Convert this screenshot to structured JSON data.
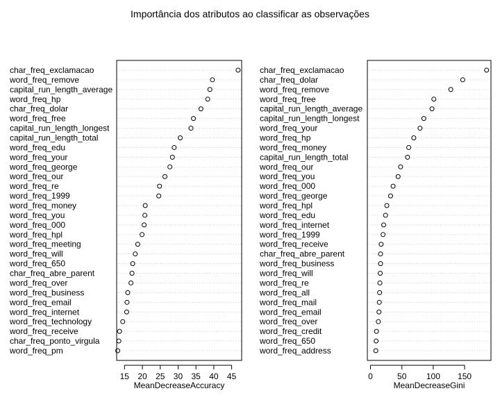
{
  "title": "Importância dos atributos ao classificar as observações",
  "chart_data": [
    {
      "type": "scatter",
      "subtype": "dotchart",
      "xlabel": "MeanDecreaseAccuracy",
      "xlim": [
        12.8,
        47.8
      ],
      "xticks": [
        15,
        20,
        25,
        30,
        35,
        40,
        45
      ],
      "grid": "dotted horizontal guide lines",
      "marker": "open circle",
      "points": [
        {
          "label": "char_freq_exclamacao",
          "value": 46.8
        },
        {
          "label": "word_freq_remove",
          "value": 39.6
        },
        {
          "label": "capital_run_length_average",
          "value": 38.9
        },
        {
          "label": "word_freq_hp",
          "value": 38.3
        },
        {
          "label": "char_freq_dolar",
          "value": 36.4
        },
        {
          "label": "word_freq_free",
          "value": 34.3
        },
        {
          "label": "capital_run_length_longest",
          "value": 33.6
        },
        {
          "label": "capital_run_length_total",
          "value": 30.6
        },
        {
          "label": "word_freq_edu",
          "value": 28.9
        },
        {
          "label": "word_freq_your",
          "value": 28.4
        },
        {
          "label": "word_freq_george",
          "value": 27.7
        },
        {
          "label": "word_freq_our",
          "value": 26.3
        },
        {
          "label": "word_freq_re",
          "value": 24.8
        },
        {
          "label": "word_freq_1999",
          "value": 24.6
        },
        {
          "label": "word_freq_money",
          "value": 20.8
        },
        {
          "label": "word_freq_you",
          "value": 20.7
        },
        {
          "label": "word_freq_000",
          "value": 20.5
        },
        {
          "label": "word_freq_hpl",
          "value": 19.9
        },
        {
          "label": "word_freq_meeting",
          "value": 18.7
        },
        {
          "label": "word_freq_will",
          "value": 18.0
        },
        {
          "label": "word_freq_650",
          "value": 17.3
        },
        {
          "label": "char_freq_abre_parent",
          "value": 17.1
        },
        {
          "label": "word_freq_over",
          "value": 16.8
        },
        {
          "label": "word_freq_business",
          "value": 15.9
        },
        {
          "label": "word_freq_email",
          "value": 15.7
        },
        {
          "label": "word_freq_internet",
          "value": 15.6
        },
        {
          "label": "word_freq_technology",
          "value": 14.5
        },
        {
          "label": "word_freq_receive",
          "value": 13.6
        },
        {
          "label": "char_freq_ponto_virgula",
          "value": 13.4
        },
        {
          "label": "word_freq_pm",
          "value": 13.1
        }
      ]
    },
    {
      "type": "scatter",
      "subtype": "dotchart",
      "xlabel": "MeanDecreaseGini",
      "xlim": [
        -5,
        192
      ],
      "xticks": [
        0,
        50,
        100,
        150
      ],
      "grid": "dotted horizontal guide lines",
      "marker": "open circle",
      "points": [
        {
          "label": "char_freq_exclamacao",
          "value": 185
        },
        {
          "label": "char_freq_dolar",
          "value": 147
        },
        {
          "label": "word_freq_remove",
          "value": 128
        },
        {
          "label": "word_freq_free",
          "value": 101
        },
        {
          "label": "capital_run_length_average",
          "value": 98
        },
        {
          "label": "capital_run_length_longest",
          "value": 85
        },
        {
          "label": "word_freq_your",
          "value": 79
        },
        {
          "label": "word_freq_hp",
          "value": 69
        },
        {
          "label": "word_freq_money",
          "value": 61
        },
        {
          "label": "capital_run_length_total",
          "value": 59
        },
        {
          "label": "word_freq_our",
          "value": 48
        },
        {
          "label": "word_freq_you",
          "value": 44
        },
        {
          "label": "word_freq_000",
          "value": 36
        },
        {
          "label": "word_freq_george",
          "value": 32
        },
        {
          "label": "word_freq_hpl",
          "value": 26
        },
        {
          "label": "word_freq_edu",
          "value": 24
        },
        {
          "label": "word_freq_internet",
          "value": 21
        },
        {
          "label": "word_freq_1999",
          "value": 20
        },
        {
          "label": "word_freq_receive",
          "value": 17
        },
        {
          "label": "char_freq_abre_parent",
          "value": 16
        },
        {
          "label": "word_freq_business",
          "value": 16
        },
        {
          "label": "word_freq_will",
          "value": 15.5
        },
        {
          "label": "word_freq_re",
          "value": 15
        },
        {
          "label": "word_freq_all",
          "value": 14.5
        },
        {
          "label": "word_freq_mail",
          "value": 14
        },
        {
          "label": "word_freq_email",
          "value": 13.5
        },
        {
          "label": "word_freq_over",
          "value": 12.5
        },
        {
          "label": "word_freq_credit",
          "value": 9.5
        },
        {
          "label": "word_freq_650",
          "value": 9
        },
        {
          "label": "word_freq_address",
          "value": 8.5
        }
      ]
    }
  ]
}
